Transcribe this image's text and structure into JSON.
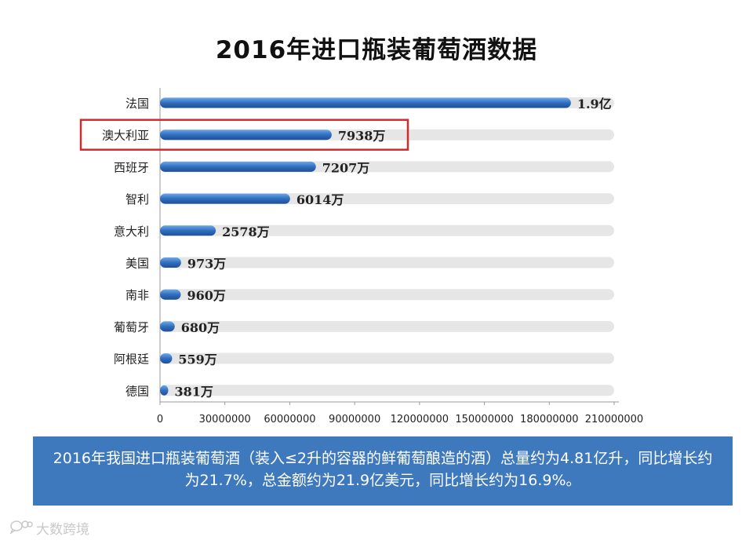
{
  "title": "2016年进口瓶装葡萄酒数据",
  "chart_data": {
    "type": "bar",
    "orientation": "horizontal",
    "categories": [
      "法国",
      "澳大利亚",
      "西班牙",
      "智利",
      "意大利",
      "美国",
      "南非",
      "葡萄牙",
      "阿根廷",
      "德国"
    ],
    "values": [
      190000000,
      79380000,
      72070000,
      60140000,
      25780000,
      9730000,
      9600000,
      6800000,
      5590000,
      3810000
    ],
    "data_labels": [
      "1.9亿",
      "7938万",
      "7207万",
      "6014万",
      "2578万",
      "973万",
      "960万",
      "680万",
      "559万",
      "381万"
    ],
    "xlim": [
      0,
      210000000
    ],
    "x_ticks": [
      "0",
      "30000000",
      "60000000",
      "90000000",
      "120000000",
      "150000000",
      "180000000",
      "210000000"
    ],
    "x_tick_values": [
      0,
      30000000,
      60000000,
      90000000,
      120000000,
      150000000,
      180000000,
      210000000
    ],
    "highlighted_category": "澳大利亚",
    "colors": {
      "bar": "#2f6fc0",
      "track": "#e6e6e6",
      "highlight_box": "#d62a2a",
      "axis": "#9a9a9a"
    }
  },
  "caption": "2016年我国进口瓶装葡萄酒（装入≤2升的容器的鲜葡萄酿造的酒）总量约为4.81亿升，同比增长约为21.7%，总金额约为21.9亿美元，同比增长约为16.9%。",
  "watermark": {
    "icon": "chat-bubble-icon",
    "text": "大数跨境"
  }
}
